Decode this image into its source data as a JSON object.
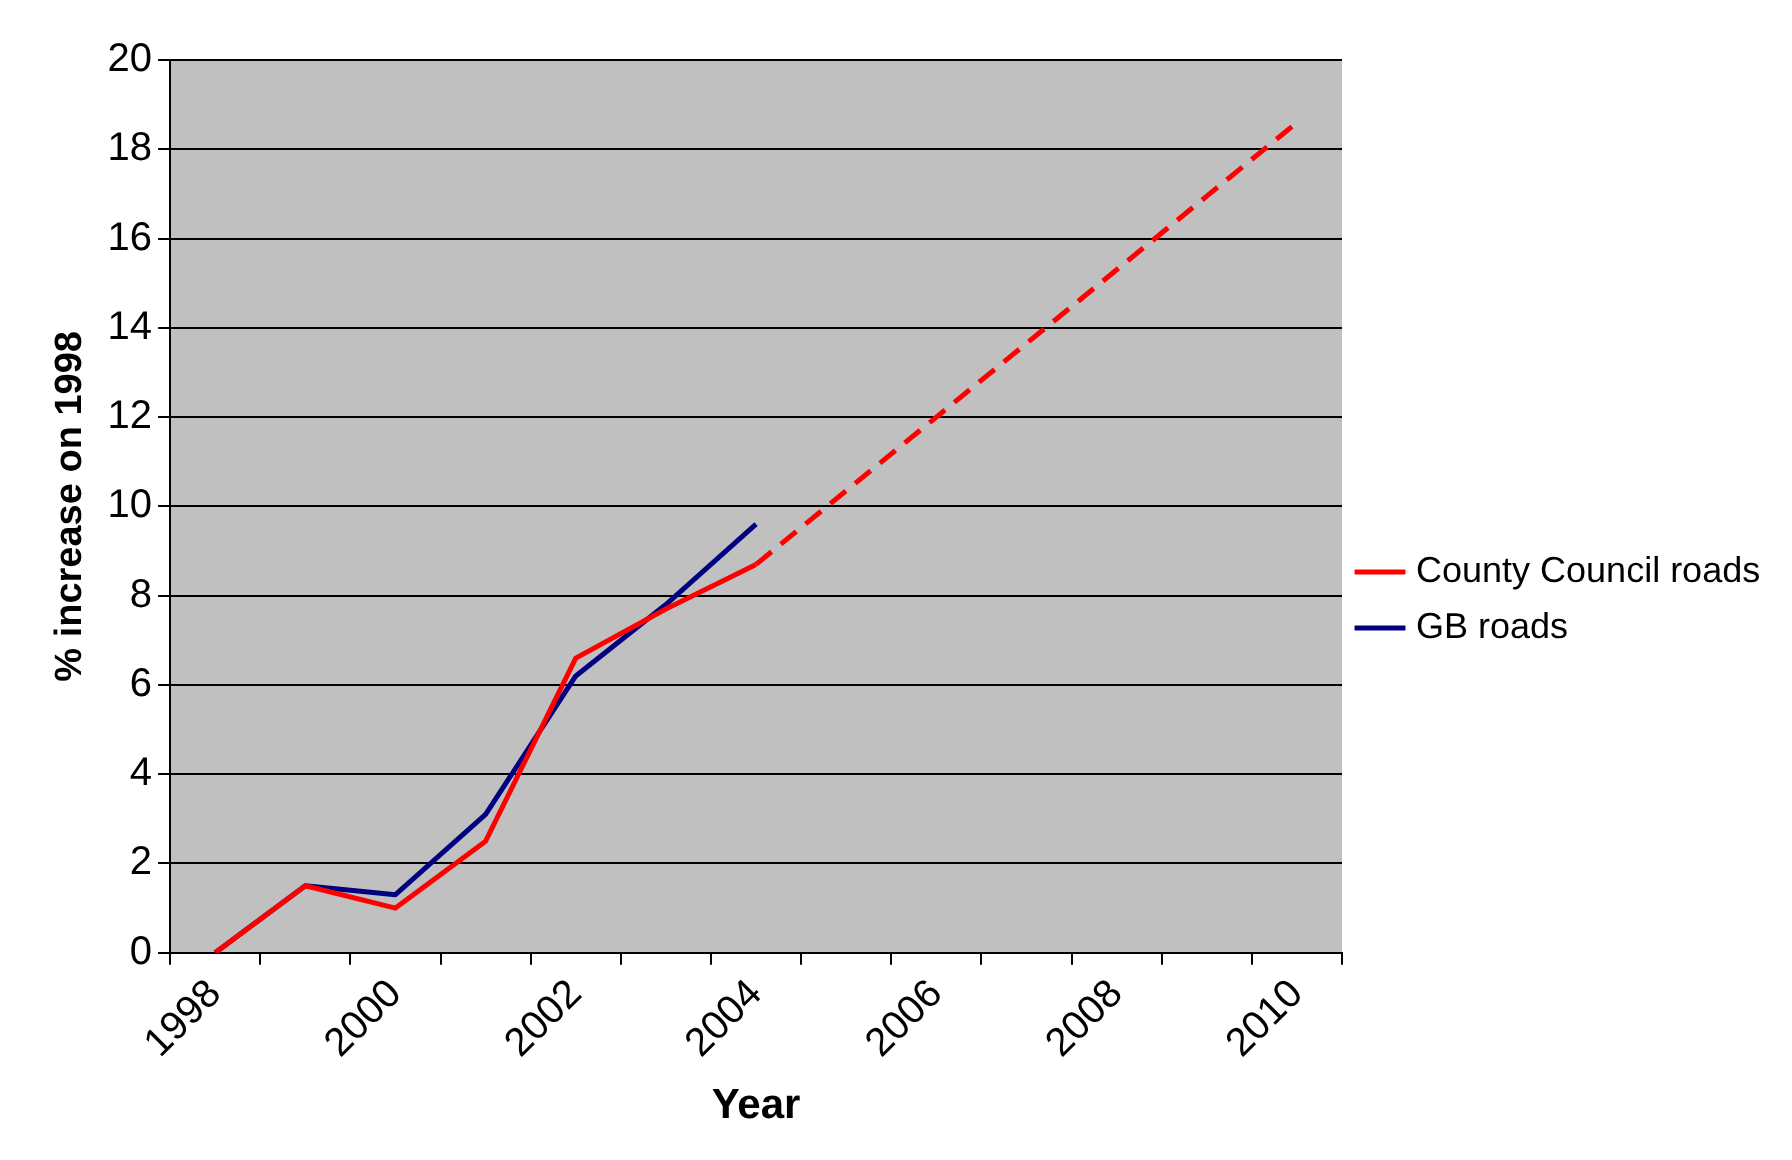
{
  "chart_data": {
    "type": "line",
    "xlabel": "Year",
    "ylabel": "% increase on 1998",
    "categories": [
      "1998",
      null,
      "2000",
      null,
      "2002",
      null,
      "2004",
      null,
      "2006",
      null,
      "2008",
      null,
      "2010"
    ],
    "series": [
      {
        "name": "County Council roads",
        "color": "#ff0000",
        "values": [
          0,
          1.5,
          1.0,
          2.5,
          6.6,
          7.7,
          8.7,
          null,
          null,
          null,
          null,
          null,
          null
        ]
      },
      {
        "name": "GB roads",
        "color": "#000080",
        "values": [
          0,
          1.5,
          1.3,
          3.1,
          6.2,
          7.8,
          9.6,
          null,
          null,
          null,
          null,
          null,
          null
        ]
      },
      {
        "color": "#ff0000",
        "line_style": "dashed",
        "values": [
          null,
          null,
          null,
          null,
          null,
          null,
          8.7,
          10.35,
          12.0,
          13.65,
          15.3,
          16.95,
          18.6
        ]
      }
    ],
    "ylim": [
      0,
      20
    ],
    "yticks": [
      0,
      2,
      4,
      6,
      8,
      10,
      12,
      14,
      16,
      18,
      20
    ],
    "grid": "y",
    "legend": "right",
    "marker": "none",
    "line_style": "solid"
  }
}
